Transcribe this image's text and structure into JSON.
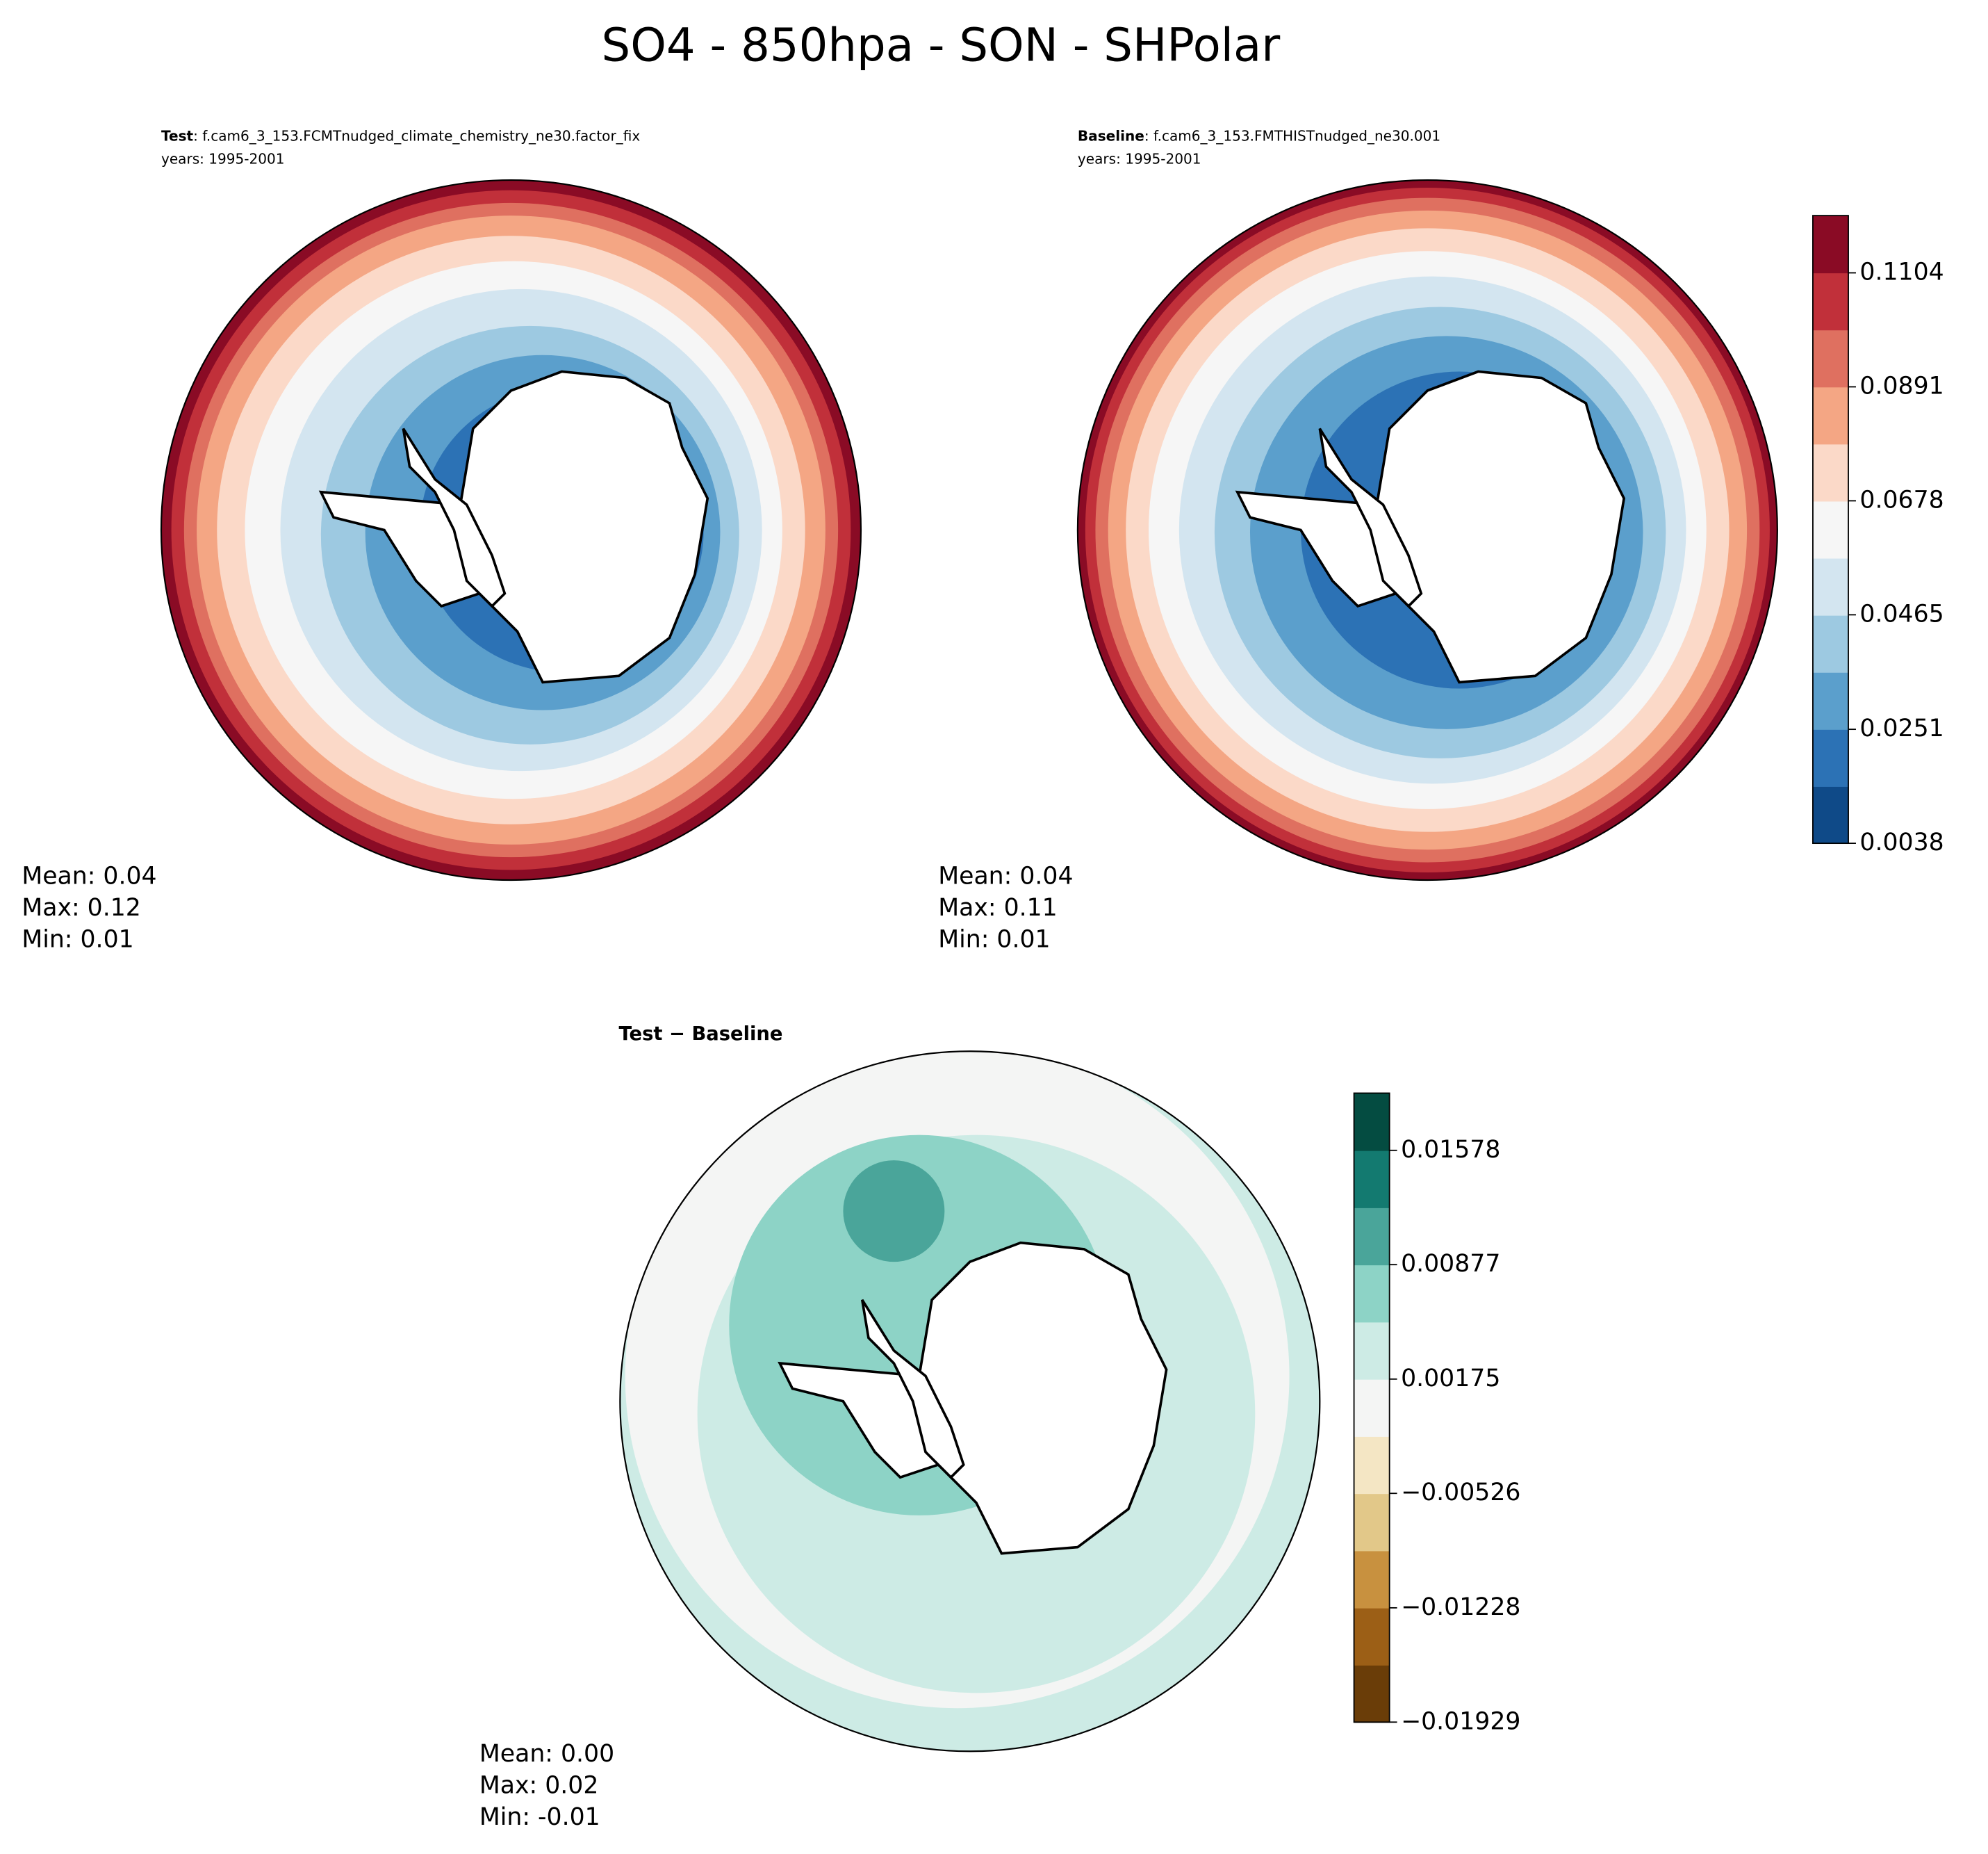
{
  "title": "SO4 - 850hpa - SON - SHPolar",
  "panels": [
    {
      "case_label": "Test",
      "case_name": ": f.cam6_3_153.FCMTnudged_climate_chemistry_ne30.factor_fix",
      "years": "years: 1995-2001",
      "stats": [
        "Mean:  0.04",
        "Max:  0.12",
        "Min:  0.01"
      ]
    },
    {
      "case_label": "Baseline",
      "case_name": ": f.cam6_3_153.FMTHISTnudged_ne30.001",
      "years": "years: 1995-2001",
      "stats": [
        "Mean:  0.04",
        "Max:  0.11",
        "Min:  0.01"
      ]
    },
    {
      "case_label": "Test − Baseline",
      "stats": [
        "Mean:  0.00",
        "Max:  0.02",
        "Min: -0.01"
      ]
    }
  ],
  "colorbars": [
    {
      "ylim": [
        0.0038,
        0.1211
      ],
      "ticks": [
        0.0038,
        0.0251,
        0.0465,
        0.0678,
        0.0891,
        0.1104
      ],
      "colors": [
        "#0f4a88",
        "#2c72b5",
        "#5b9fcc",
        "#9dc9e1",
        "#d3e5f0",
        "#f6f6f6",
        "#fbd9c8",
        "#f4a684",
        "#df7060",
        "#c1303a",
        "#8a0b25"
      ]
    },
    {
      "ylim": [
        -0.01929,
        0.01929
      ],
      "ticks": [
        {
          "value": -0.01929,
          "label": "−0.01929"
        },
        {
          "value": -0.01228,
          "label": "−0.01228"
        },
        {
          "value": -0.00526,
          "label": "−0.00526"
        },
        0.00175,
        0.00877,
        0.01578
      ],
      "colors": [
        "#6a3d08",
        "#9c5f16",
        "#c8913f",
        "#e2c889",
        "#f4e6c4",
        "#f4f5f4",
        "#cdebe5",
        "#8dd3c6",
        "#4aa59a",
        "#137a70",
        "#044c41"
      ]
    }
  ]
}
